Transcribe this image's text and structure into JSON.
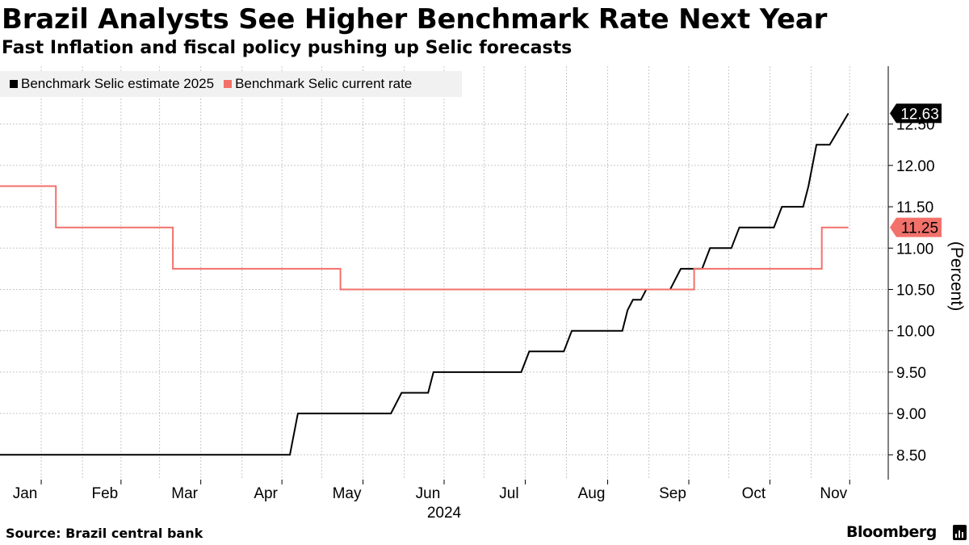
{
  "header": {
    "title": "Brazil Analysts See Higher Benchmark Rate Next Year",
    "subtitle": "Fast Inflation and fiscal policy pushing up Selic forecasts"
  },
  "legend": [
    {
      "label": "Benchmark Selic estimate 2025",
      "color": "#000000"
    },
    {
      "label": "Benchmark Selic current rate",
      "color": "#f2716b"
    }
  ],
  "footer": {
    "source": "Source: Brazil central bank",
    "brand": "Bloomberg",
    "brand_icon": "bloomberg-chart-icon"
  },
  "chart_data": {
    "type": "line",
    "title": "Brazil Analysts See Higher Benchmark Rate Next Year",
    "subtitle": "Fast Inflation and fiscal policy pushing up Selic forecasts",
    "xlabel": "2024",
    "ylabel": "(Percent)",
    "xlim": [
      "2024-01-01",
      "2024-11-30"
    ],
    "ylim": [
      8.2,
      13.2
    ],
    "y_ticks": [
      "8.50",
      "9.00",
      "9.50",
      "10.00",
      "10.50",
      "11.00",
      "11.50",
      "12.00",
      "12.50"
    ],
    "x_ticks": [
      "Jan",
      "Feb",
      "Mar",
      "Apr",
      "May",
      "Jun",
      "Jul",
      "Aug",
      "Sep",
      "Oct",
      "Nov"
    ],
    "x_tick_dates": [
      "2024-01-01",
      "2024-02-01",
      "2024-03-01",
      "2024-04-01",
      "2024-05-01",
      "2024-06-01",
      "2024-07-01",
      "2024-08-01",
      "2024-09-01",
      "2024-10-01",
      "2024-11-01"
    ],
    "grid": true,
    "legend_position": "top-left",
    "series": [
      {
        "name": "Benchmark Selic estimate 2025",
        "color": "#000000",
        "last_value_label": "12.63",
        "points": [
          [
            "2024-01-01",
            8.5
          ],
          [
            "2024-04-19",
            8.5
          ],
          [
            "2024-04-22",
            9.0
          ],
          [
            "2024-05-27",
            9.0
          ],
          [
            "2024-05-31",
            9.25
          ],
          [
            "2024-06-10",
            9.25
          ],
          [
            "2024-06-12",
            9.5
          ],
          [
            "2024-07-15",
            9.5
          ],
          [
            "2024-07-18",
            9.75
          ],
          [
            "2024-07-31",
            9.75
          ],
          [
            "2024-08-03",
            10.0
          ],
          [
            "2024-08-22",
            10.0
          ],
          [
            "2024-08-24",
            10.25
          ],
          [
            "2024-08-26",
            10.375
          ],
          [
            "2024-08-29",
            10.375
          ],
          [
            "2024-08-31",
            10.5
          ],
          [
            "2024-09-09",
            10.5
          ],
          [
            "2024-09-11",
            10.625
          ],
          [
            "2024-09-13",
            10.75
          ],
          [
            "2024-09-21",
            10.75
          ],
          [
            "2024-09-24",
            11.0
          ],
          [
            "2024-10-02",
            11.0
          ],
          [
            "2024-10-05",
            11.25
          ],
          [
            "2024-10-18",
            11.25
          ],
          [
            "2024-10-21",
            11.5
          ],
          [
            "2024-10-29",
            11.5
          ],
          [
            "2024-10-31",
            11.75
          ],
          [
            "2024-11-03",
            12.25
          ],
          [
            "2024-11-08",
            12.25
          ],
          [
            "2024-11-15",
            12.63
          ]
        ]
      },
      {
        "name": "Benchmark Selic current rate",
        "color": "#f2716b",
        "last_value_label": "11.25",
        "points": [
          [
            "2024-01-01",
            11.75
          ],
          [
            "2024-01-22",
            11.75
          ],
          [
            "2024-01-22",
            11.25
          ],
          [
            "2024-03-06",
            11.25
          ],
          [
            "2024-03-06",
            10.75
          ],
          [
            "2024-05-08",
            10.75
          ],
          [
            "2024-05-08",
            10.5
          ],
          [
            "2024-09-18",
            10.5
          ],
          [
            "2024-09-18",
            10.75
          ],
          [
            "2024-11-05",
            10.75
          ],
          [
            "2024-11-05",
            11.25
          ],
          [
            "2024-11-15",
            11.25
          ]
        ]
      }
    ]
  }
}
